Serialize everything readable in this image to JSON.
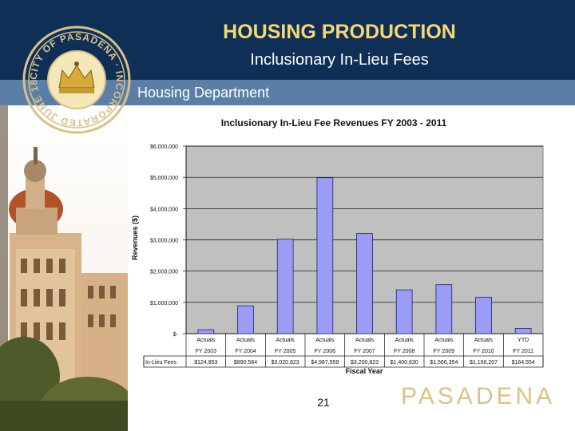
{
  "header": {
    "title": "HOUSING PRODUCTION",
    "subtitle": "Inclusionary In-Lieu Fees",
    "department": "Housing Department"
  },
  "seal": {
    "text": "CITY OF PASADENA · INCORPORATED JUNE 1886"
  },
  "footer": {
    "page_number": "21",
    "logo_text": "PASADENA"
  },
  "colors": {
    "header_bg": "#0f2f57",
    "title": "#f6d774",
    "dept_bar": "#5b7ea7",
    "bar_fill": "#9b9cf6",
    "plot_bg": "#c0c0c0"
  },
  "chart_data": {
    "type": "bar",
    "title": "Inclusionary In-Lieu Fee Revenues FY 2003 - 2011",
    "xlabel": "Fiscal Year",
    "ylabel": "Revenues ($)",
    "ylim": [
      0,
      6000000
    ],
    "yticks": [
      "$6,000,000",
      "$5,000,000",
      "$4,000,000",
      "$3,000,000",
      "$2,000,000",
      "$1,000,000",
      "$-"
    ],
    "ytick_values": [
      6000000,
      5000000,
      4000000,
      3000000,
      2000000,
      1000000,
      0
    ],
    "category_top": [
      "Actuals",
      "Actuals",
      "Actuals",
      "Actuals",
      "Actuals",
      "Actuals",
      "Actuals",
      "Actuals",
      "YTD"
    ],
    "categories": [
      "FY 2003",
      "FY 2004",
      "FY 2005",
      "FY 2006",
      "FY 2007",
      "FY 2008",
      "FY 2009",
      "FY 2010",
      "FY 2011"
    ],
    "values": [
      124853,
      890584,
      3020823,
      4987559,
      3200823,
      1400630,
      1566354,
      1166207,
      164554
    ],
    "table_row_label": "In-Lieu Fees",
    "table_values": [
      "$124,853",
      "$890,584",
      "$3,020,823",
      "$4,987,559",
      "$3,200,823",
      "$1,400,630",
      "$1,566,354",
      "$1,166,207",
      "$164,554"
    ],
    "grid": true,
    "legend": "none"
  }
}
